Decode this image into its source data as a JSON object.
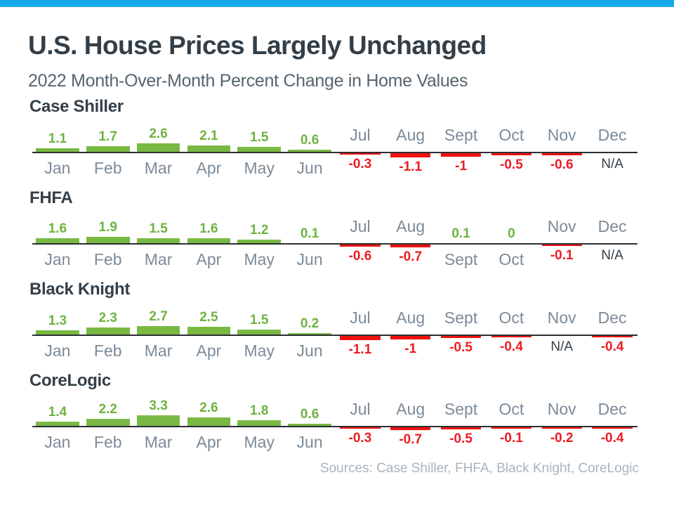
{
  "page": {
    "title": "U.S. House Prices Largely Unchanged",
    "subtitle": "2022 Month-Over-Month Percent Change in Home Values",
    "sources": "Sources: Case Shiller, FHFA, Black Knight, CoreLogic"
  },
  "colors": {
    "accent_bar": "#15aaec",
    "heading": "#333f48",
    "subtitle": "#56656f",
    "month_label": "#7c8b99",
    "positive_bar": "#79b943",
    "positive_text": "#6db33f",
    "negative_bar": "#f01212",
    "negative_text": "#ed1c24",
    "sources_text": "#a9b4be",
    "axis_line": "#2b2f33"
  },
  "chart_data": [
    {
      "type": "bar",
      "title": "Case Shiller",
      "categories": [
        "Jan",
        "Feb",
        "Mar",
        "Apr",
        "May",
        "Jun",
        "Jul",
        "Aug",
        "Sept",
        "Oct",
        "Nov",
        "Dec"
      ],
      "values": [
        1.1,
        1.7,
        2.6,
        2.1,
        1.5,
        0.6,
        -0.3,
        -1.1,
        -1,
        -0.5,
        -0.6,
        null
      ],
      "value_labels": [
        "1.1",
        "1.7",
        "2.6",
        "2.1",
        "1.5",
        "0.6",
        "-0.3",
        "-1.1",
        "-1",
        "-0.5",
        "-0.6",
        "N/A"
      ],
      "xlabel": "",
      "ylabel": "",
      "grid": false,
      "legend": "none"
    },
    {
      "type": "bar",
      "title": "FHFA",
      "categories": [
        "Jan",
        "Feb",
        "Mar",
        "Apr",
        "May",
        "Jun",
        "Jul",
        "Aug",
        "Sept",
        "Oct",
        "Nov",
        "Dec"
      ],
      "values": [
        1.6,
        1.9,
        1.5,
        1.6,
        1.2,
        0.1,
        -0.6,
        -0.7,
        0.1,
        0,
        -0.1,
        null
      ],
      "value_labels": [
        "1.6",
        "1.9",
        "1.5",
        "1.6",
        "1.2",
        "0.1",
        "-0.6",
        "-0.7",
        "0.1",
        "0",
        "-0.1",
        "N/A"
      ],
      "xlabel": "",
      "ylabel": "",
      "grid": false,
      "legend": "none"
    },
    {
      "type": "bar",
      "title": "Black Knight",
      "categories": [
        "Jan",
        "Feb",
        "Mar",
        "Apr",
        "May",
        "Jun",
        "Jul",
        "Aug",
        "Sept",
        "Oct",
        "Nov",
        "Dec"
      ],
      "values": [
        1.3,
        2.3,
        2.7,
        2.5,
        1.5,
        0.2,
        -1.1,
        -1,
        -0.5,
        -0.4,
        null,
        -0.4
      ],
      "value_labels": [
        "1.3",
        "2.3",
        "2.7",
        "2.5",
        "1.5",
        "0.2",
        "-1.1",
        "-1",
        "-0.5",
        "-0.4",
        "N/A",
        "-0.4"
      ],
      "xlabel": "",
      "ylabel": "",
      "grid": false,
      "legend": "none"
    },
    {
      "type": "bar",
      "title": "CoreLogic",
      "categories": [
        "Jan",
        "Feb",
        "Mar",
        "Apr",
        "May",
        "Jun",
        "Jul",
        "Aug",
        "Sept",
        "Oct",
        "Nov",
        "Dec"
      ],
      "values": [
        1.4,
        2.2,
        3.3,
        2.6,
        1.8,
        0.6,
        -0.3,
        -0.7,
        -0.5,
        -0.1,
        -0.2,
        -0.4
      ],
      "value_labels": [
        "1.4",
        "2.2",
        "3.3",
        "2.6",
        "1.8",
        "0.6",
        "-0.3",
        "-0.7",
        "-0.5",
        "-0.1",
        "-0.2",
        "-0.4"
      ],
      "xlabel": "",
      "ylabel": "",
      "grid": false,
      "legend": "none"
    }
  ]
}
